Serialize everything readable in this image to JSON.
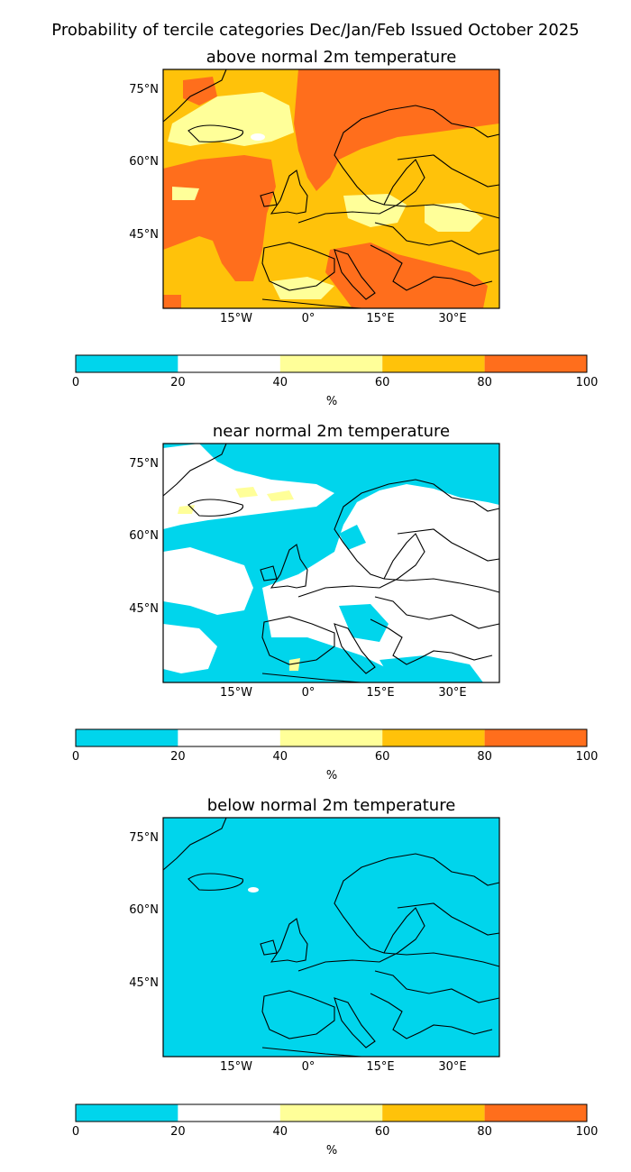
{
  "figure": {
    "title": "Probability of tercile categories Dec/Jan/Feb Issued October 2025"
  },
  "panels": [
    {
      "title": "above normal 2m temperature",
      "lat_ticks": [
        "75°N",
        "60°N",
        "45°N"
      ],
      "lon_ticks": [
        "15°W",
        "0°",
        "15°E",
        "30°E"
      ],
      "dominant_category": "60-80",
      "colorbar": {
        "ticks": [
          "0",
          "20",
          "40",
          "60",
          "80",
          "100"
        ],
        "label": "%"
      }
    },
    {
      "title": "near normal 2m temperature",
      "lat_ticks": [
        "75°N",
        "60°N",
        "45°N"
      ],
      "lon_ticks": [
        "15°W",
        "0°",
        "15°E",
        "30°E"
      ],
      "dominant_category": "20-40",
      "colorbar": {
        "ticks": [
          "0",
          "20",
          "40",
          "60",
          "80",
          "100"
        ],
        "label": "%"
      }
    },
    {
      "title": "below normal 2m temperature",
      "lat_ticks": [
        "75°N",
        "60°N",
        "45°N"
      ],
      "lon_ticks": [
        "15°W",
        "0°",
        "15°E",
        "30°E"
      ],
      "dominant_category": "0-20",
      "colorbar": {
        "ticks": [
          "0",
          "20",
          "40",
          "60",
          "80",
          "100"
        ],
        "label": "%"
      }
    }
  ],
  "legend": {
    "categories": [
      {
        "range": "0-20",
        "color": "#00d5ec"
      },
      {
        "range": "20-40",
        "color": "#ffffff"
      },
      {
        "range": "40-60",
        "color": "#ffff99"
      },
      {
        "range": "60-80",
        "color": "#ffc20a"
      },
      {
        "range": "80-100",
        "color": "#ff6e1c"
      }
    ]
  },
  "map_extent": {
    "lon": [
      -30,
      40
    ],
    "lat": [
      30,
      80
    ]
  }
}
